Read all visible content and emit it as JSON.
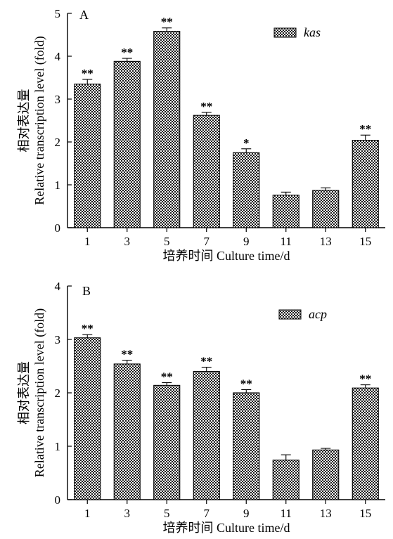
{
  "chart_data": [
    {
      "type": "bar",
      "panel_label": "A",
      "categories": [
        "1",
        "3",
        "5",
        "7",
        "9",
        "11",
        "13",
        "15"
      ],
      "values": [
        3.35,
        3.88,
        4.58,
        2.62,
        1.75,
        0.76,
        0.87,
        2.04
      ],
      "errors": [
        0.11,
        0.07,
        0.08,
        0.07,
        0.09,
        0.07,
        0.06,
        0.12
      ],
      "significance": [
        "**",
        "**",
        "**",
        "**",
        "*",
        "",
        "",
        "**"
      ],
      "legend": "kas",
      "xlabel": "培养时间 Culture time/d",
      "ylabel_cn": "相对表达量",
      "ylabel_en": "Relative transcription level (fold)",
      "ylim": [
        0,
        5
      ],
      "yticks": [
        "0",
        "1",
        "2",
        "3",
        "4",
        "5"
      ]
    },
    {
      "type": "bar",
      "panel_label": "B",
      "categories": [
        "1",
        "3",
        "5",
        "7",
        "9",
        "11",
        "13",
        "15"
      ],
      "values": [
        3.03,
        2.54,
        2.14,
        2.4,
        2.0,
        0.74,
        0.93,
        2.09
      ],
      "errors": [
        0.06,
        0.07,
        0.05,
        0.08,
        0.06,
        0.1,
        0.03,
        0.06
      ],
      "significance": [
        "**",
        "**",
        "**",
        "**",
        "**",
        "",
        "",
        "**"
      ],
      "legend": "acp",
      "xlabel": "培养时间 Culture time/d",
      "ylabel_cn": "相对表达量",
      "ylabel_en": "Relative transcription level (fold)",
      "ylim": [
        0,
        4
      ],
      "yticks": [
        "0",
        "1",
        "2",
        "3",
        "4"
      ]
    }
  ]
}
